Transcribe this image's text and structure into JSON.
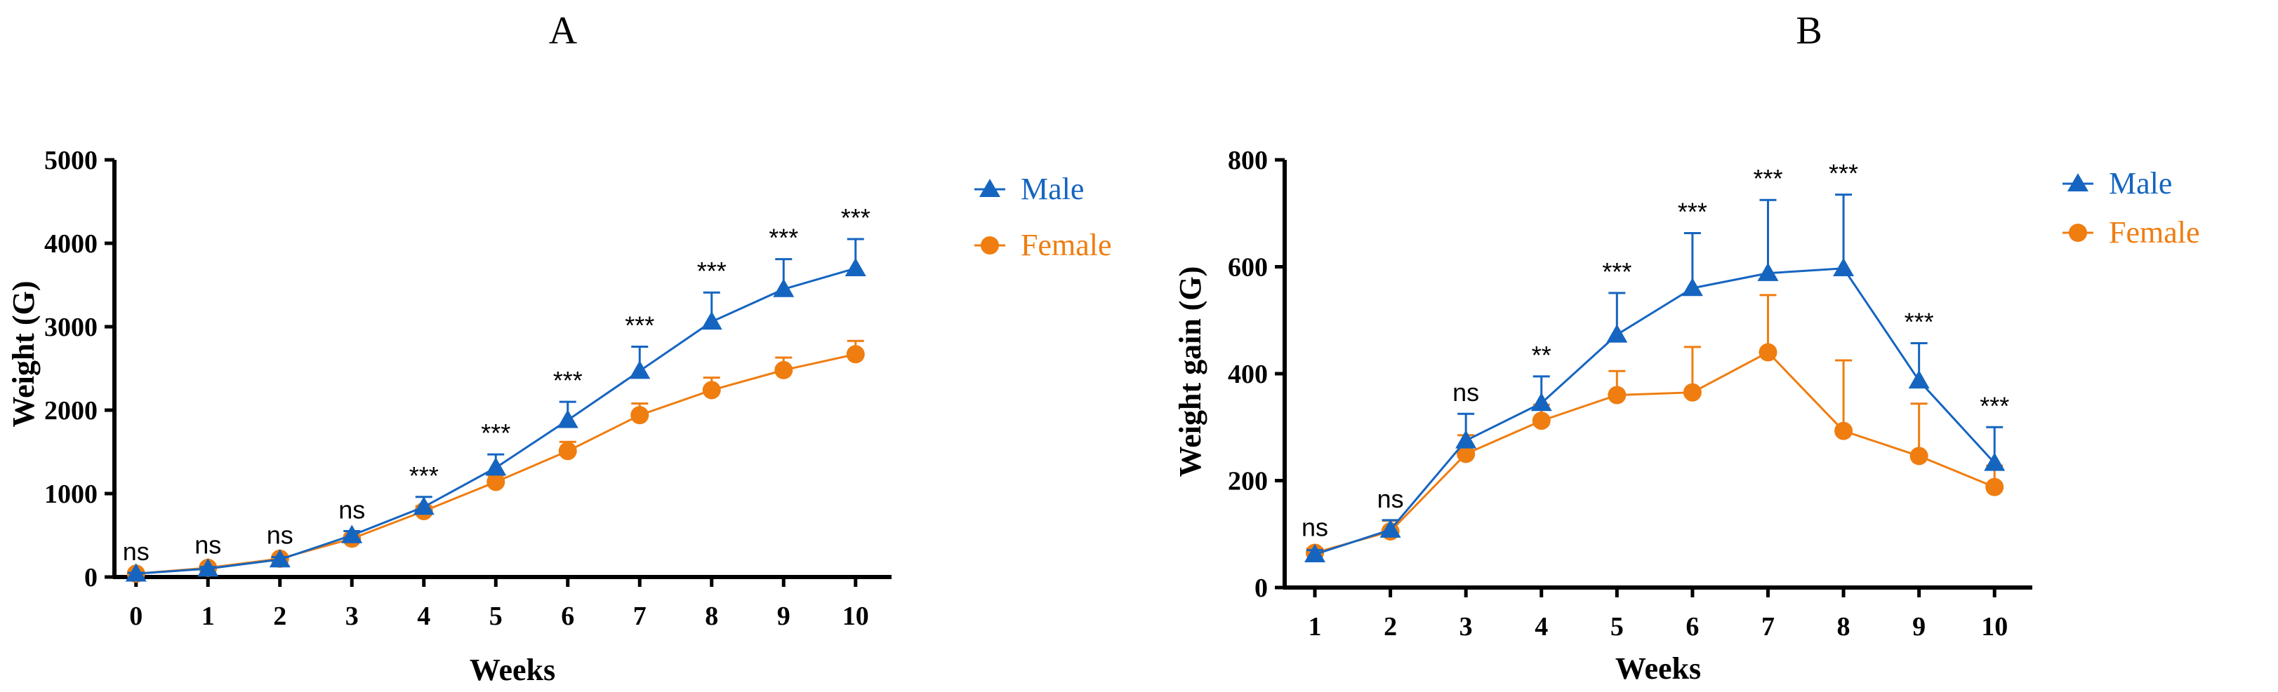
{
  "colors": {
    "male": "#1565c0",
    "female": "#ef7d10"
  },
  "chart_data": [
    {
      "type": "line",
      "title": "A",
      "xlabel": "Weeks",
      "ylabel": "Weight (G)",
      "x": [
        0,
        1,
        2,
        3,
        4,
        5,
        6,
        7,
        8,
        9,
        10
      ],
      "xlim": [
        -0.3,
        10.5
      ],
      "ylim": [
        0,
        5000
      ],
      "yticks": [
        0,
        1000,
        2000,
        3000,
        4000,
        5000
      ],
      "yticklabels": [
        "0",
        "1000",
        "2000",
        "3000",
        "4000",
        "5000"
      ],
      "xticklabels": [
        "0",
        "1",
        "2",
        "3",
        "4",
        "5",
        "6",
        "7",
        "8",
        "9",
        "10"
      ],
      "series": [
        {
          "name": "Male",
          "marker": "triangle",
          "color": "#1565c0",
          "values": [
            40,
            100,
            210,
            500,
            840,
            1310,
            1880,
            2470,
            3060,
            3450,
            3700
          ],
          "errors": [
            10,
            20,
            30,
            50,
            120,
            160,
            220,
            290,
            350,
            360,
            350
          ]
        },
        {
          "name": "Female",
          "marker": "circle",
          "color": "#ef7d10",
          "values": [
            40,
            110,
            220,
            460,
            790,
            1140,
            1510,
            1940,
            2240,
            2480,
            2670
          ],
          "errors": [
            10,
            20,
            30,
            40,
            60,
            80,
            110,
            140,
            150,
            150,
            160
          ]
        }
      ],
      "annotations": [
        "ns",
        "ns",
        "ns",
        "ns",
        "***",
        "***",
        "***",
        "***",
        "***",
        "***",
        "***"
      ],
      "legend": "right",
      "grid": false
    },
    {
      "type": "line",
      "title": "B",
      "xlabel": "Weeks",
      "ylabel": "Weight gain (G)",
      "x": [
        1,
        2,
        3,
        4,
        5,
        6,
        7,
        8,
        9,
        10
      ],
      "xlim": [
        0.6,
        10.5
      ],
      "ylim": [
        0,
        800
      ],
      "yticks": [
        0,
        200,
        400,
        600,
        800
      ],
      "yticklabels": [
        "0",
        "200",
        "400",
        "600",
        "800"
      ],
      "xticklabels": [
        "1",
        "2",
        "3",
        "4",
        "5",
        "6",
        "7",
        "8",
        "9",
        "10"
      ],
      "series": [
        {
          "name": "Male",
          "marker": "triangle",
          "color": "#1565c0",
          "values": [
            62,
            108,
            275,
            345,
            473,
            560,
            588,
            597,
            387,
            233
          ],
          "errors": [
            8,
            18,
            50,
            50,
            78,
            103,
            137,
            138,
            70,
            67
          ]
        },
        {
          "name": "Female",
          "marker": "circle",
          "color": "#ef7d10",
          "values": [
            65,
            105,
            250,
            312,
            360,
            365,
            440,
            293,
            246,
            188
          ],
          "errors": [
            8,
            20,
            35,
            30,
            45,
            85,
            107,
            132,
            98,
            40
          ]
        }
      ],
      "annotations": [
        "ns",
        "ns",
        "ns",
        "**",
        "***",
        "***",
        "***",
        "***",
        "***",
        "***"
      ],
      "legend": "right",
      "grid": false
    }
  ]
}
